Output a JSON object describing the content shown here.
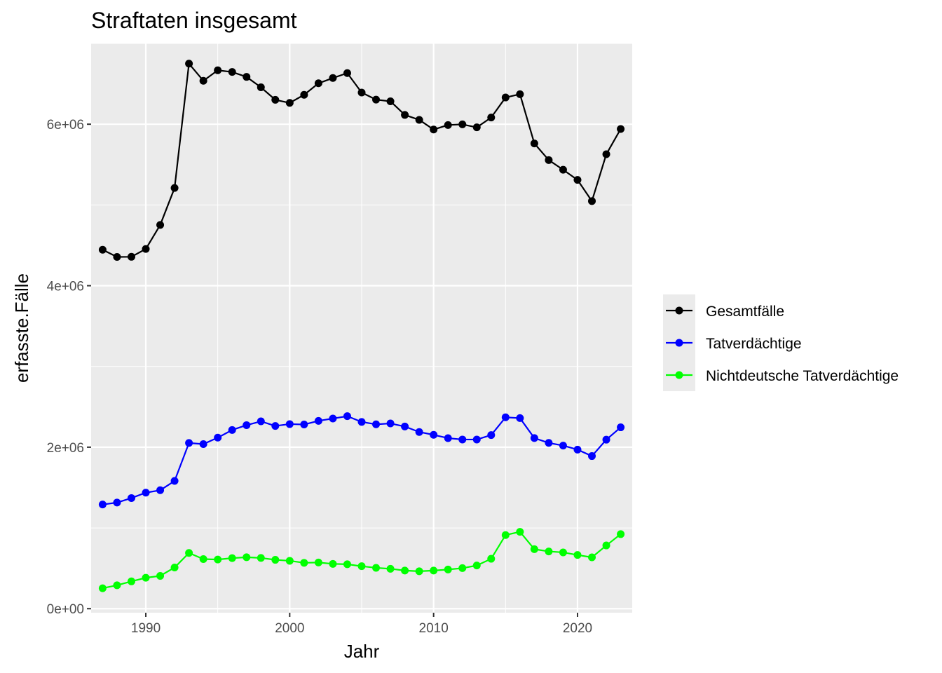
{
  "chart_data": {
    "type": "line",
    "title": "Straftaten insgesamt",
    "xlabel": "Jahr",
    "ylabel": "erfasste.Fälle",
    "xlim": [
      1986.2,
      2023.8
    ],
    "ylim": [
      -50000,
      7000000
    ],
    "x_ticks": [
      1990,
      2000,
      2010,
      2020
    ],
    "x_tick_labels": [
      "1990",
      "2000",
      "2010",
      "2020"
    ],
    "y_ticks": [
      0,
      2000000,
      4000000,
      6000000
    ],
    "y_tick_labels": [
      "0e+00",
      "2e+06",
      "4e+06",
      "6e+06"
    ],
    "grid": true,
    "legend_position": "right",
    "x": [
      1987,
      1988,
      1989,
      1990,
      1991,
      1992,
      1993,
      1994,
      1995,
      1996,
      1997,
      1998,
      1999,
      2000,
      2001,
      2002,
      2003,
      2004,
      2005,
      2006,
      2007,
      2008,
      2009,
      2010,
      2011,
      2012,
      2013,
      2014,
      2015,
      2016,
      2017,
      2018,
      2019,
      2020,
      2021,
      2022,
      2023
    ],
    "series": [
      {
        "name": "Gesamtfälle",
        "color": "#000000",
        "values": [
          4445000,
          4356000,
          4358000,
          4455000,
          4752000,
          5210000,
          6750000,
          6538000,
          6668000,
          6647000,
          6586000,
          6457000,
          6302000,
          6264000,
          6364000,
          6507000,
          6572000,
          6633000,
          6392000,
          6304000,
          6284000,
          6115000,
          6054000,
          5934000,
          5990000,
          5998000,
          5961000,
          6083000,
          6331000,
          6372000,
          5762000,
          5556000,
          5436000,
          5310000,
          5048000,
          5628000,
          5941000
        ]
      },
      {
        "name": "Tatverdächtige",
        "color": "#0000ff",
        "values": [
          1290000,
          1314000,
          1370000,
          1437000,
          1467000,
          1582000,
          2052000,
          2038000,
          2118000,
          2213000,
          2273000,
          2320000,
          2263000,
          2286000,
          2281000,
          2326000,
          2355000,
          2384000,
          2313000,
          2283000,
          2294000,
          2256000,
          2188000,
          2153000,
          2112000,
          2095000,
          2095000,
          2150000,
          2370000,
          2360000,
          2113000,
          2053000,
          2020000,
          1970000,
          1890000,
          2093000,
          2246000
        ]
      },
      {
        "name": "Nichtdeutsche Tatverdächtige",
        "color": "#00ff00",
        "values": [
          253000,
          290000,
          338000,
          383000,
          406000,
          510000,
          690000,
          614000,
          609000,
          626000,
          637000,
          628000,
          605000,
          593000,
          568000,
          572000,
          555000,
          550000,
          526000,
          506000,
          494000,
          472000,
          463000,
          472000,
          485000,
          502000,
          535000,
          618000,
          912000,
          952000,
          737000,
          709000,
          697000,
          665000,
          636000,
          783000,
          923000
        ]
      }
    ]
  }
}
